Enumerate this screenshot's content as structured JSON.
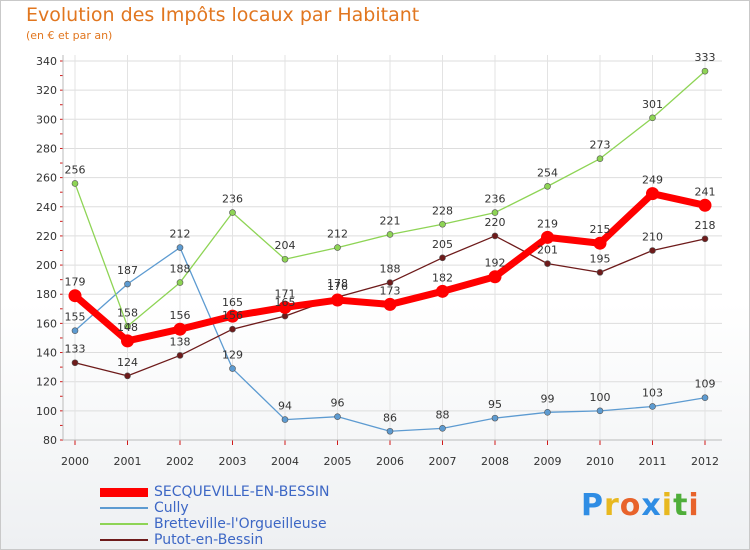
{
  "chart_data": {
    "type": "line",
    "title": "Evolution des Impôts locaux par Habitant",
    "subtitle": "(en € et par an)",
    "xlabel": "",
    "ylabel": "",
    "ylim": [
      80,
      340
    ],
    "yticks": [
      80,
      100,
      120,
      140,
      160,
      180,
      200,
      220,
      240,
      260,
      280,
      300,
      320,
      340
    ],
    "categories": [
      "2000",
      "2001",
      "2002",
      "2003",
      "2004",
      "2005",
      "2006",
      "2007",
      "2008",
      "2009",
      "2010",
      "2011",
      "2012"
    ],
    "series": [
      {
        "name": "SECQUEVILLE-EN-BESSIN",
        "color": "#ff0000",
        "values": [
          179,
          148,
          156,
          165,
          171,
          176,
          173,
          182,
          192,
          219,
          215,
          249,
          241
        ]
      },
      {
        "name": "Cully",
        "color": "#5d9bd1",
        "values": [
          155,
          187,
          212,
          129,
          94,
          96,
          86,
          88,
          95,
          99,
          100,
          103,
          109
        ]
      },
      {
        "name": "Bretteville-l'Orgueilleuse",
        "color": "#8ed455",
        "values": [
          256,
          158,
          188,
          236,
          204,
          212,
          221,
          228,
          236,
          254,
          273,
          301,
          333
        ]
      },
      {
        "name": "Putot-en-Bessin",
        "color": "#6e1b1b",
        "values": [
          133,
          124,
          138,
          156,
          165,
          178,
          188,
          205,
          220,
          201,
          195,
          210,
          218
        ]
      }
    ],
    "legend_position": "bottom-left"
  },
  "logo": {
    "letters": [
      "P",
      "r",
      "o",
      "x",
      "i",
      "t",
      "i"
    ],
    "colors": [
      "#2f8de4",
      "#e8b81f",
      "#e8632b",
      "#2f8de4",
      "#e8b81f",
      "#4fae3a",
      "#e8632b"
    ]
  }
}
